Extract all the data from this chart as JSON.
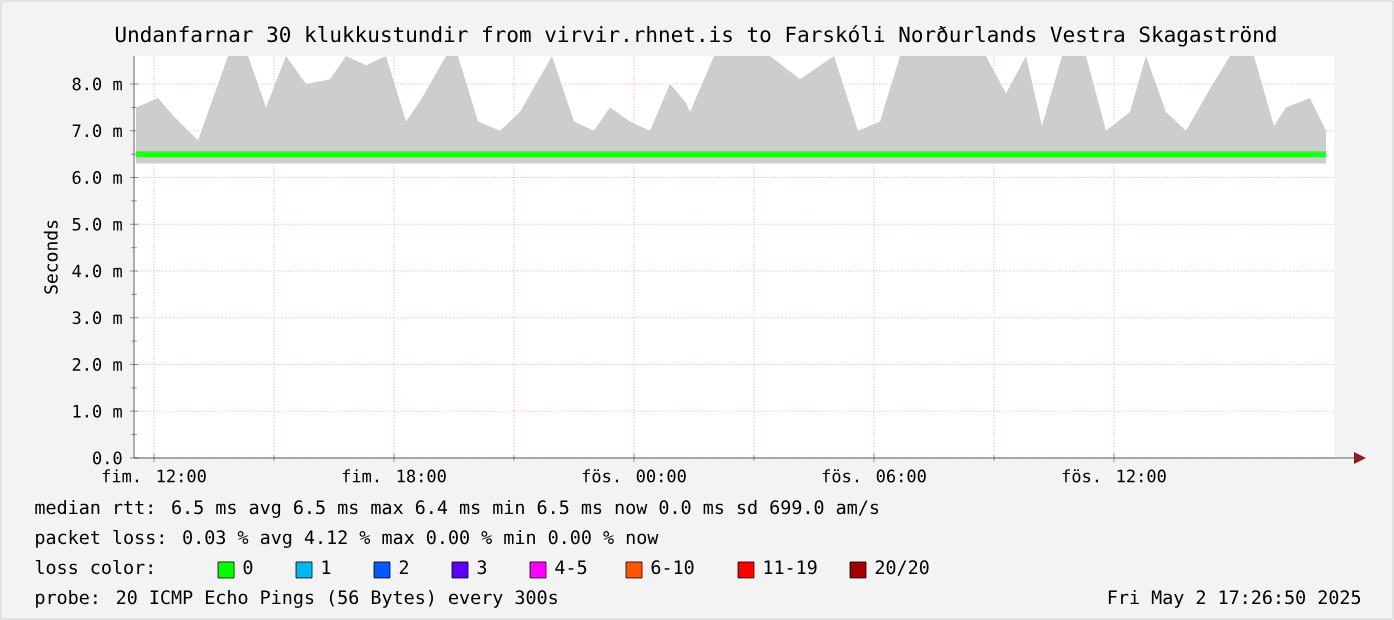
{
  "chart_data": {
    "type": "line",
    "title": "Undanfarnar 30 klukkustundir from virvir.rhnet.is to Farskóli Norðurlands Vestra Skagaströnd",
    "ylabel": "Seconds",
    "xlim": [
      "2025-05-01T11:30",
      "2025-05-02T17:30"
    ],
    "xticks": [
      {
        "value": "2025-05-01T12:00",
        "label": "fim. 12:00"
      },
      {
        "value": "2025-05-01T18:00",
        "label": "fim. 18:00"
      },
      {
        "value": "2025-05-02T00:00",
        "label": "fös. 00:00"
      },
      {
        "value": "2025-05-02T06:00",
        "label": "fös. 06:00"
      },
      {
        "value": "2025-05-02T12:00",
        "label": "fös. 12:00"
      }
    ],
    "ylim": [
      0,
      8.6
    ],
    "yticks": [
      {
        "value": 0,
        "label": "0.0"
      },
      {
        "value": 1,
        "label": "1.0 m"
      },
      {
        "value": 2,
        "label": "2.0 m"
      },
      {
        "value": 3,
        "label": "3.0 m"
      },
      {
        "value": 4,
        "label": "4.0 m"
      },
      {
        "value": 5,
        "label": "5.0 m"
      },
      {
        "value": 6,
        "label": "6.0 m"
      },
      {
        "value": 7,
        "label": "7.0 m"
      },
      {
        "value": 8,
        "label": "8.0 m"
      }
    ],
    "grid": true,
    "series": [
      {
        "color": "#20ff20",
        "x": [
          "2025-05-01T11:33",
          "2025-05-01T12:06",
          "2025-05-01T12:30",
          "2025-05-01T13:06",
          "2025-05-01T13:51",
          "2025-05-01T14:21",
          "2025-05-01T14:48",
          "2025-05-01T15:18",
          "2025-05-01T15:48",
          "2025-05-01T16:24",
          "2025-05-01T16:48",
          "2025-05-01T17:18",
          "2025-05-01T17:48",
          "2025-05-01T18:18",
          "2025-05-01T18:42",
          "2025-05-01T19:18",
          "2025-05-01T19:36",
          "2025-05-01T20:06",
          "2025-05-01T20:39",
          "2025-05-01T21:09",
          "2025-05-01T21:57",
          "2025-05-01T22:30",
          "2025-05-01T23:00",
          "2025-05-01T23:24",
          "2025-05-01T23:54",
          "2025-05-02T00:24",
          "2025-05-02T00:54",
          "2025-05-02T01:18",
          "2025-05-02T01:24",
          "2025-05-02T02:00",
          "2025-05-02T03:00",
          "2025-05-02T03:24",
          "2025-05-02T04:09",
          "2025-05-02T05:00",
          "2025-05-02T05:36",
          "2025-05-02T06:09",
          "2025-05-02T06:39",
          "2025-05-02T07:09",
          "2025-05-02T07:42",
          "2025-05-02T08:18",
          "2025-05-02T08:48",
          "2025-05-02T09:18",
          "2025-05-02T09:48",
          "2025-05-02T10:12",
          "2025-05-02T10:42",
          "2025-05-02T11:18",
          "2025-05-02T11:48",
          "2025-05-02T12:24",
          "2025-05-02T12:48",
          "2025-05-02T13:18",
          "2025-05-02T13:48",
          "2025-05-02T14:24",
          "2025-05-02T14:54",
          "2025-05-02T15:30",
          "2025-05-02T16:00",
          "2025-05-02T16:18",
          "2025-05-02T16:54",
          "2025-05-02T17:18"
        ],
        "values": [
          6.5,
          6.5,
          6.5,
          6.5,
          6.5,
          6.5,
          6.5,
          6.5,
          6.5,
          6.5,
          6.5,
          6.5,
          6.5,
          6.5,
          6.5,
          6.5,
          6.5,
          6.5,
          6.5,
          6.5,
          6.5,
          6.5,
          6.5,
          6.5,
          6.5,
          6.5,
          6.5,
          6.5,
          6.5,
          6.5,
          6.5,
          6.5,
          6.5,
          6.5,
          6.5,
          6.5,
          6.5,
          6.5,
          6.5,
          6.5,
          6.5,
          6.5,
          6.5,
          6.5,
          6.5,
          6.5,
          6.5,
          6.5,
          6.5,
          6.5,
          6.5,
          6.5,
          6.5,
          6.5,
          6.5,
          6.5,
          6.5,
          6.5
        ],
        "lower": [
          6.3,
          6.3,
          6.3,
          6.3,
          6.3,
          6.3,
          6.3,
          6.3,
          6.3,
          6.3,
          6.3,
          6.3,
          6.3,
          6.3,
          6.3,
          6.3,
          6.3,
          6.3,
          6.3,
          6.3,
          6.3,
          6.3,
          6.3,
          6.3,
          6.3,
          6.3,
          6.3,
          6.3,
          6.3,
          6.3,
          6.3,
          6.3,
          6.3,
          6.3,
          6.3,
          6.3,
          6.3,
          6.3,
          6.3,
          6.3,
          6.3,
          6.3,
          6.3,
          6.3,
          6.3,
          6.3,
          6.3,
          6.3,
          6.3,
          6.3,
          6.3,
          6.3,
          6.3,
          6.3,
          6.3,
          6.3,
          6.3,
          6.3
        ],
        "upper": [
          7.5,
          7.7,
          7.3,
          6.8,
          8.6,
          8.6,
          7.5,
          8.6,
          8.0,
          8.1,
          8.6,
          8.4,
          8.6,
          7.2,
          7.7,
          8.6,
          8.6,
          7.2,
          7.0,
          7.4,
          8.6,
          7.2,
          7.0,
          7.5,
          7.2,
          7.0,
          8.0,
          7.6,
          7.4,
          8.6,
          8.6,
          8.6,
          8.1,
          8.6,
          7.0,
          7.2,
          8.6,
          8.6,
          8.6,
          8.6,
          8.6,
          7.8,
          8.6,
          7.1,
          8.6,
          8.6,
          7.0,
          7.4,
          8.6,
          7.4,
          7.0,
          7.9,
          8.6,
          8.6,
          7.1,
          7.5,
          7.7,
          7.0
        ]
      }
    ],
    "annotations": [
      "median rtt:  6.5 ms avg  6.5 ms max  6.4 ms min  6.5 ms now  0.0 ms sd  699.0  am/s",
      "packet loss: 0.03 % avg  4.12 % max  0.00 % min  0.00 % now",
      "loss color:",
      "0",
      "1",
      "2",
      "3",
      "4-5",
      "6-10",
      "11-19",
      "20/20",
      "probe:  20 ICMP Echo Pings (56 Bytes) every 300s",
      "Fri May  2 17:26:50 2025"
    ]
  }
}
